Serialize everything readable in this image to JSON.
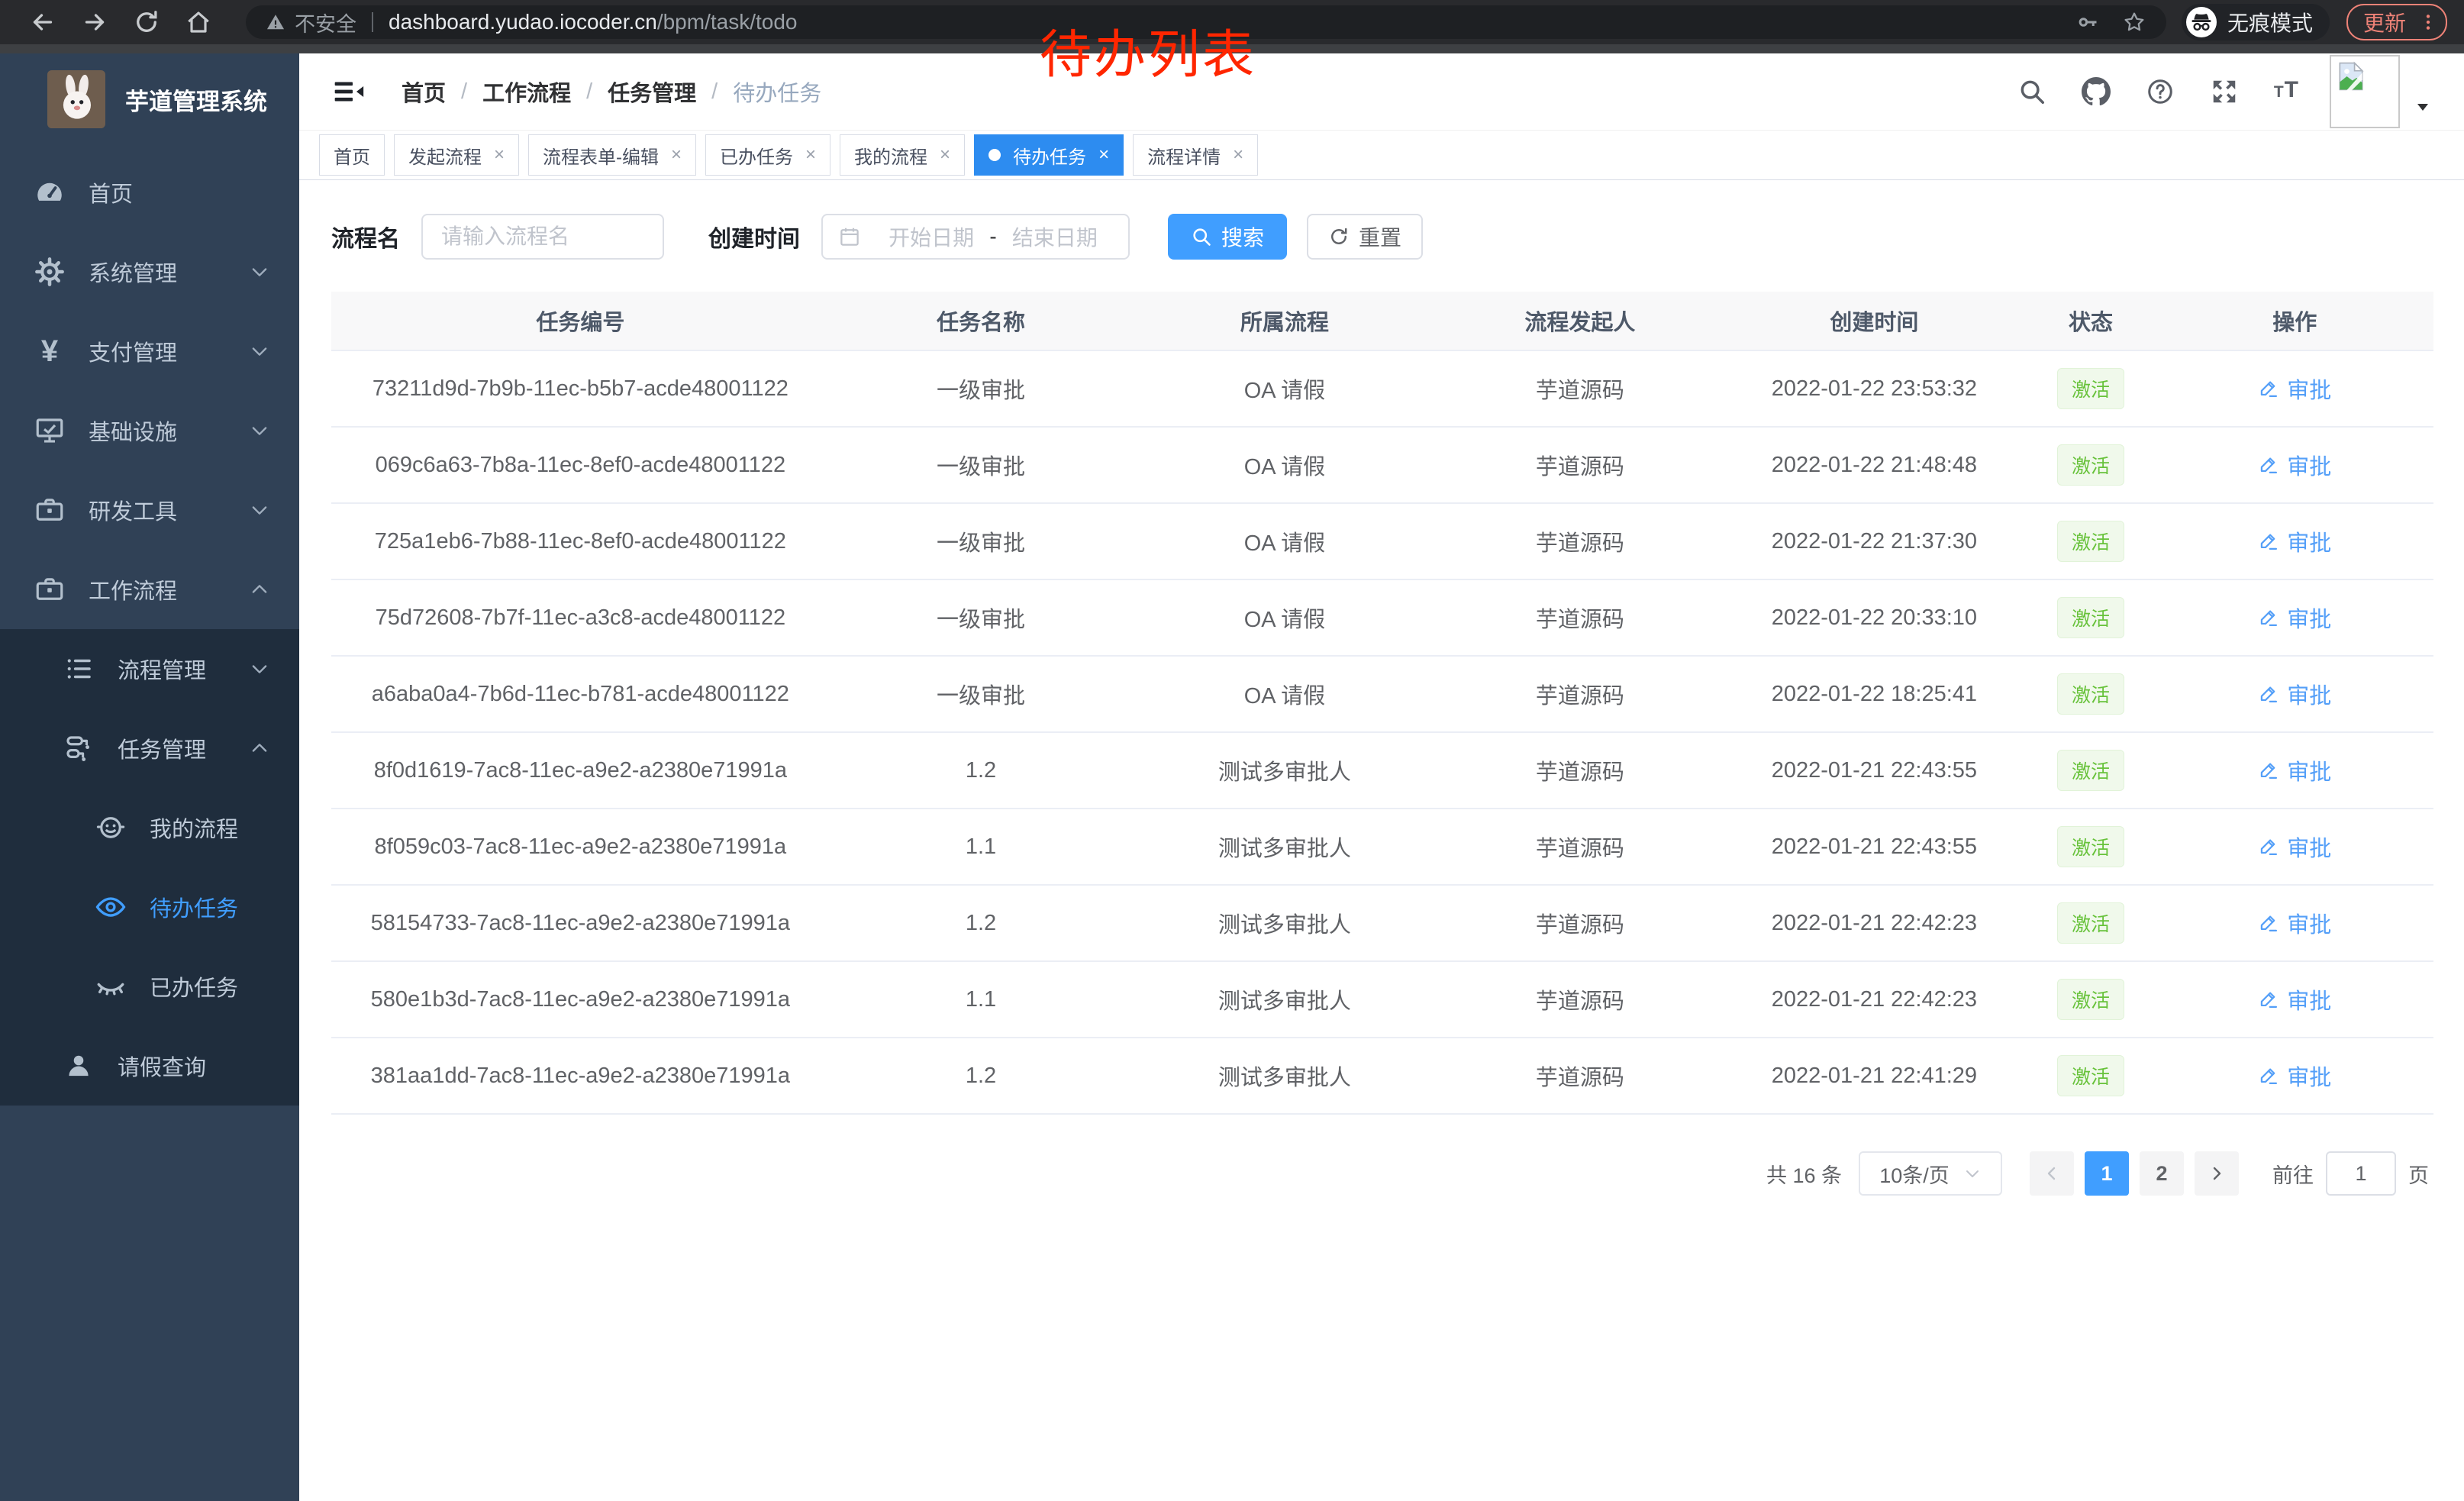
{
  "annotation": {
    "text": "待办列表",
    "color": "#ff2600"
  },
  "browser": {
    "security_label": "不安全",
    "url_host": "dashboard.yudao.iocoder.cn",
    "url_path": "/bpm/task/todo",
    "incognito_label": "无痕模式",
    "update_label": "更新"
  },
  "sidebar": {
    "app_title": "芋道管理系统",
    "items": [
      {
        "label": "首页",
        "icon": "gauge",
        "cls": "l1"
      },
      {
        "label": "系统管理",
        "icon": "gear",
        "chevron": "chevron-down",
        "cls": "l1"
      },
      {
        "label": "支付管理",
        "icon": "yen",
        "chevron": "chevron-down",
        "cls": "l1"
      },
      {
        "label": "基础设施",
        "icon": "monitor",
        "chevron": "chevron-down",
        "cls": "l1"
      },
      {
        "label": "研发工具",
        "icon": "toolbox",
        "chevron": "chevron-down",
        "cls": "l1"
      },
      {
        "label": "工作流程",
        "icon": "toolbox",
        "chevron": "chevron-up",
        "cls": "l1"
      },
      {
        "label": "流程管理",
        "icon": "list",
        "chevron": "chevron-down",
        "cls": "l2 dark"
      },
      {
        "label": "任务管理",
        "icon": "tree",
        "chevron": "chevron-up",
        "cls": "l2 dark"
      },
      {
        "label": "我的流程",
        "icon": "face",
        "cls": "l3 dark"
      },
      {
        "label": "待办任务",
        "icon": "eye",
        "cls": "l3 dark active"
      },
      {
        "label": "已办任务",
        "icon": "eye-closed",
        "cls": "l3 dark"
      },
      {
        "label": "请假查询",
        "icon": "person",
        "cls": "l2 dark"
      }
    ]
  },
  "navbar": {
    "breadcrumb": [
      {
        "label": "首页"
      },
      {
        "label": "工作流程",
        "sep": true
      },
      {
        "label": "任务管理",
        "sep": true
      },
      {
        "label": "待办任务",
        "sep": true,
        "cls": "current"
      }
    ]
  },
  "tabs": [
    {
      "label": "首页"
    },
    {
      "label": "发起流程",
      "closable": true
    },
    {
      "label": "流程表单-编辑",
      "closable": true
    },
    {
      "label": "已办任务",
      "closable": true
    },
    {
      "label": "我的流程",
      "closable": true
    },
    {
      "label": "待办任务",
      "closable": true,
      "dot": true,
      "cls": "active"
    },
    {
      "label": "流程详情",
      "closable": true
    }
  ],
  "filters": {
    "name_label": "流程名",
    "name_placeholder": "请输入流程名",
    "time_label": "创建时间",
    "start_placeholder": "开始日期",
    "range_separator": "-",
    "end_placeholder": "结束日期",
    "search_label": "搜索",
    "reset_label": "重置"
  },
  "table": {
    "columns": [
      {
        "label": "任务编号"
      },
      {
        "label": "任务名称"
      },
      {
        "label": "所属流程"
      },
      {
        "label": "流程发起人"
      },
      {
        "label": "创建时间"
      },
      {
        "label": "状态"
      },
      {
        "label": "操作"
      }
    ],
    "rows": [
      {
        "id": "73211d9d-7b9b-11ec-b5b7-acde48001122",
        "name": "一级审批",
        "process": "OA 请假",
        "starter": "芋道源码",
        "created": "2022-01-22 23:53:32",
        "status": "激活",
        "action": "审批"
      },
      {
        "id": "069c6a63-7b8a-11ec-8ef0-acde48001122",
        "name": "一级审批",
        "process": "OA 请假",
        "starter": "芋道源码",
        "created": "2022-01-22 21:48:48",
        "status": "激活",
        "action": "审批"
      },
      {
        "id": "725a1eb6-7b88-11ec-8ef0-acde48001122",
        "name": "一级审批",
        "process": "OA 请假",
        "starter": "芋道源码",
        "created": "2022-01-22 21:37:30",
        "status": "激活",
        "action": "审批"
      },
      {
        "id": "75d72608-7b7f-11ec-a3c8-acde48001122",
        "name": "一级审批",
        "process": "OA 请假",
        "starter": "芋道源码",
        "created": "2022-01-22 20:33:10",
        "status": "激活",
        "action": "审批"
      },
      {
        "id": "a6aba0a4-7b6d-11ec-b781-acde48001122",
        "name": "一级审批",
        "process": "OA 请假",
        "starter": "芋道源码",
        "created": "2022-01-22 18:25:41",
        "status": "激活",
        "action": "审批"
      },
      {
        "id": "8f0d1619-7ac8-11ec-a9e2-a2380e71991a",
        "name": "1.2",
        "process": "测试多审批人",
        "starter": "芋道源码",
        "created": "2022-01-21 22:43:55",
        "status": "激活",
        "action": "审批"
      },
      {
        "id": "8f059c03-7ac8-11ec-a9e2-a2380e71991a",
        "name": "1.1",
        "process": "测试多审批人",
        "starter": "芋道源码",
        "created": "2022-01-21 22:43:55",
        "status": "激活",
        "action": "审批"
      },
      {
        "id": "58154733-7ac8-11ec-a9e2-a2380e71991a",
        "name": "1.2",
        "process": "测试多审批人",
        "starter": "芋道源码",
        "created": "2022-01-21 22:42:23",
        "status": "激活",
        "action": "审批"
      },
      {
        "id": "580e1b3d-7ac8-11ec-a9e2-a2380e71991a",
        "name": "1.1",
        "process": "测试多审批人",
        "starter": "芋道源码",
        "created": "2022-01-21 22:42:23",
        "status": "激活",
        "action": "审批"
      },
      {
        "id": "381aa1dd-7ac8-11ec-a9e2-a2380e71991a",
        "name": "1.2",
        "process": "测试多审批人",
        "starter": "芋道源码",
        "created": "2022-01-21 22:41:29",
        "status": "激活",
        "action": "审批"
      }
    ]
  },
  "pagination": {
    "total": "共 16 条",
    "page_size": "10条/页",
    "pages": [
      {
        "label": "1",
        "cls": "active"
      },
      {
        "label": "2"
      }
    ],
    "goto_label": "前往",
    "goto_value": "1",
    "goto_unit": "页"
  },
  "theme": {
    "accent": "#409eff",
    "sidebar_bg": "#304156",
    "submenu_bg": "#1f2d3d",
    "tag_active_bg": "#2d8cf0",
    "badge_bg": "#f0f9eb",
    "badge_text": "#67c23a",
    "annotation_color": "#ff2600"
  }
}
